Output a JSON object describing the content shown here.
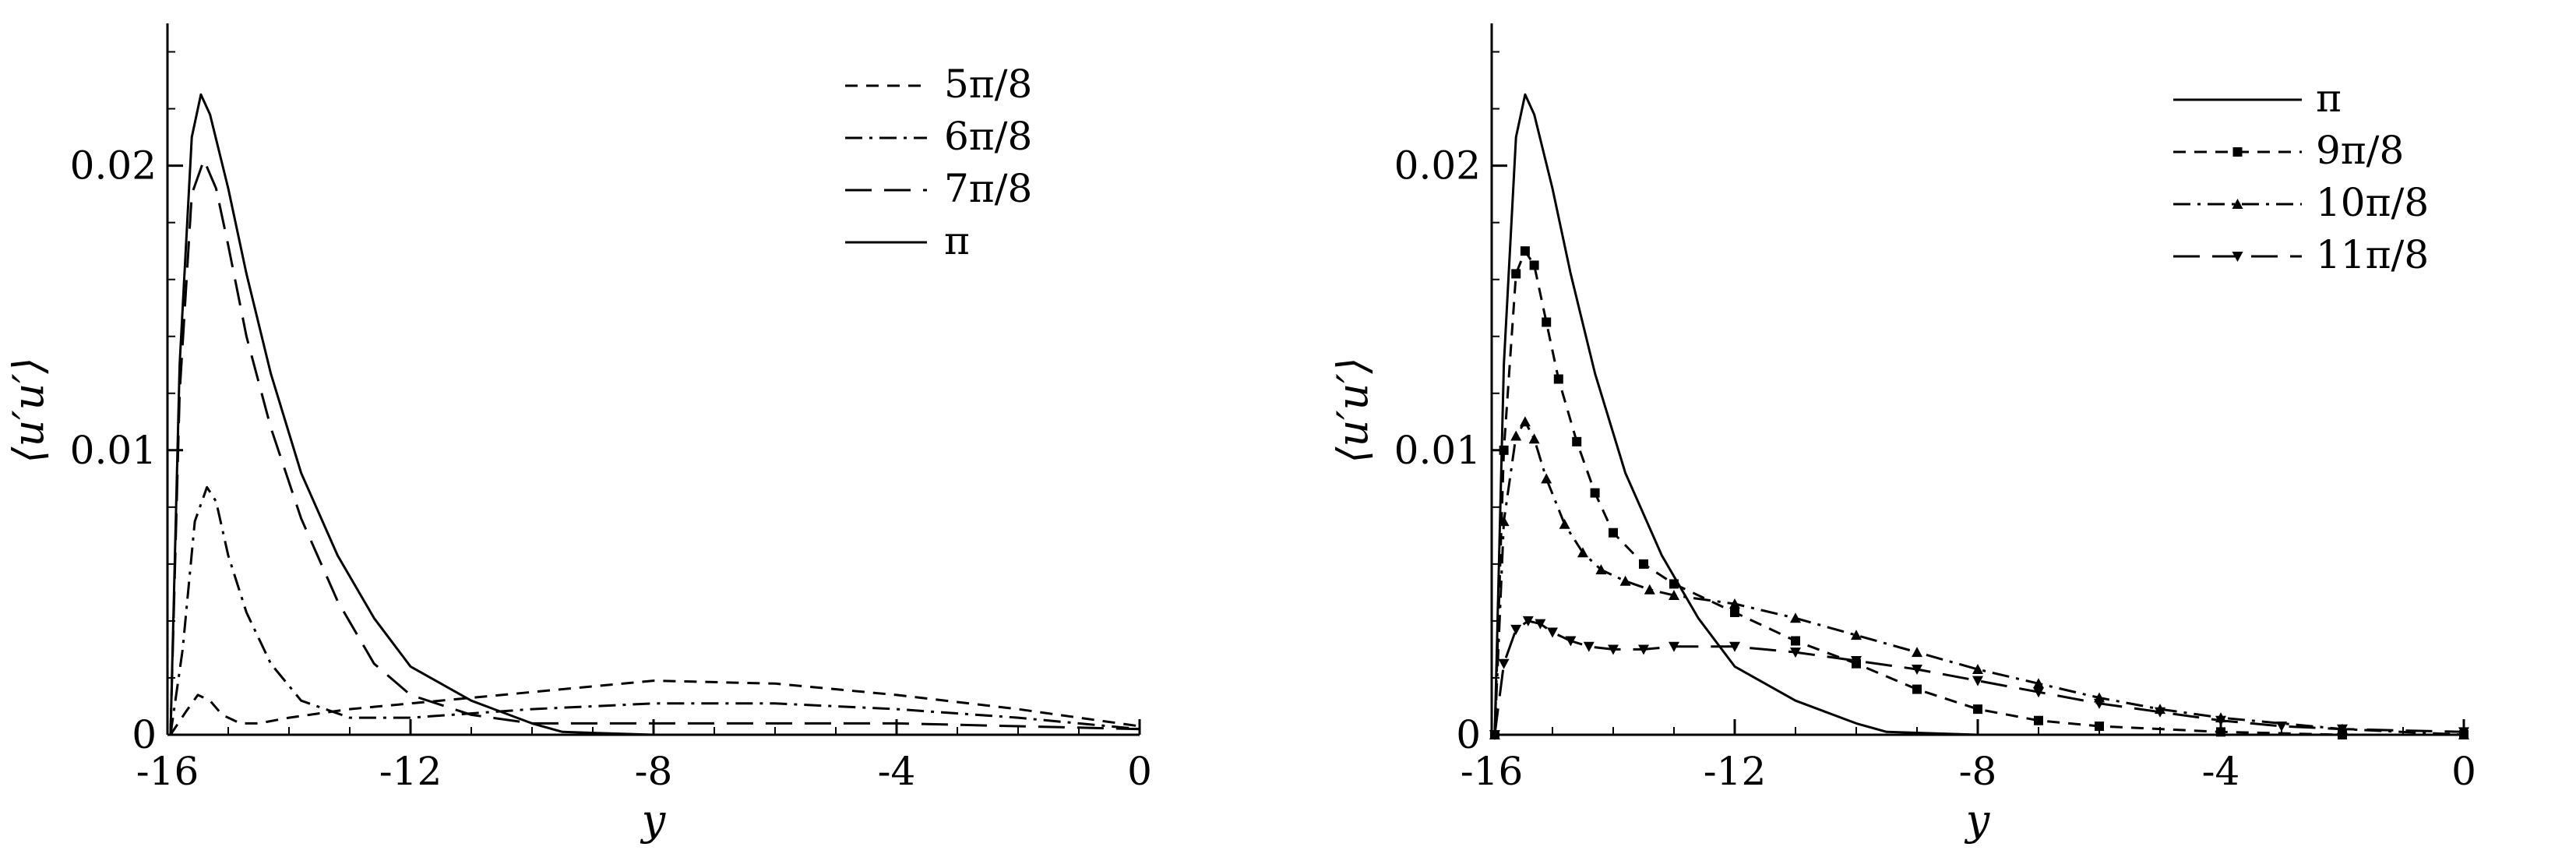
{
  "chart_data": [
    {
      "type": "line",
      "panel": "left",
      "xlabel": "y",
      "ylabel": "⟨u′u′⟩",
      "xlim": [
        -16,
        0
      ],
      "ylim": [
        0,
        0.025
      ],
      "xticks": [
        -16,
        -12,
        -8,
        -4,
        0
      ],
      "xtick_labels": [
        "-16",
        "-12",
        "-8",
        "-4",
        "0"
      ],
      "yticks": [
        0,
        0.01,
        0.02
      ],
      "ytick_labels": [
        "0",
        "0.01",
        "0.02"
      ],
      "grid": false,
      "legend_position": "top-right",
      "series": [
        {
          "name": "5π/8",
          "dash": "short-dash",
          "marker": "none",
          "x": [
            -15.95,
            -15.7,
            -15.5,
            -15.3,
            -15.1,
            -14.8,
            -14.5,
            -14,
            -13,
            -12,
            -10,
            -8,
            -6,
            -4,
            -2,
            0
          ],
          "y": [
            0,
            0.0008,
            0.0014,
            0.0012,
            0.0007,
            0.0004,
            0.0004,
            0.0006,
            0.0009,
            0.0011,
            0.0015,
            0.0019,
            0.0018,
            0.0014,
            0.0009,
            0.0003
          ]
        },
        {
          "name": "6π/8",
          "dash": "dash-dot",
          "marker": "none",
          "x": [
            -15.95,
            -15.75,
            -15.55,
            -15.35,
            -15.2,
            -15.0,
            -14.7,
            -14.3,
            -13.8,
            -13.0,
            -12.0,
            -10.0,
            -8.0,
            -6.0,
            -4.0,
            -2.0,
            0
          ],
          "y": [
            0,
            0.003,
            0.0075,
            0.0087,
            0.0082,
            0.0063,
            0.0043,
            0.0025,
            0.0012,
            0.0006,
            0.0006,
            0.0009,
            0.0011,
            0.0011,
            0.0009,
            0.0006,
            0.0002
          ]
        },
        {
          "name": "7π/8",
          "dash": "long-dash",
          "marker": "none",
          "x": [
            -15.95,
            -15.8,
            -15.6,
            -15.4,
            -15.2,
            -15.0,
            -14.7,
            -14.3,
            -13.8,
            -13.2,
            -12.6,
            -12.0,
            -11.0,
            -10.0,
            -8.0,
            -6.0,
            -4.0,
            -2.0,
            0
          ],
          "y": [
            0,
            0.012,
            0.019,
            0.0202,
            0.0192,
            0.0172,
            0.014,
            0.0108,
            0.0076,
            0.0047,
            0.0025,
            0.0014,
            0.0007,
            0.0004,
            0.0004,
            0.0004,
            0.0004,
            0.0003,
            0.0002
          ]
        },
        {
          "name": "π",
          "dash": "solid",
          "marker": "none",
          "x": [
            -15.95,
            -15.8,
            -15.6,
            -15.45,
            -15.3,
            -15.0,
            -14.7,
            -14.3,
            -13.8,
            -13.2,
            -12.6,
            -12.0,
            -11.0,
            -10.0,
            -9.5,
            -8.0,
            -6.0,
            -4.0,
            -2.0,
            0
          ],
          "y": [
            0,
            0.013,
            0.021,
            0.0225,
            0.0218,
            0.0192,
            0.0162,
            0.0127,
            0.0092,
            0.0063,
            0.0041,
            0.0024,
            0.0012,
            0.0004,
            0.0001,
            0,
            0,
            0,
            0,
            0
          ]
        }
      ]
    },
    {
      "type": "line",
      "panel": "right",
      "xlabel": "y",
      "ylabel": "⟨u′u′⟩",
      "xlim": [
        -16,
        0
      ],
      "ylim": [
        0,
        0.025
      ],
      "xticks": [
        -16,
        -12,
        -8,
        -4,
        0
      ],
      "xtick_labels": [
        "-16",
        "-12",
        "-8",
        "-4",
        "0"
      ],
      "yticks": [
        0,
        0.01,
        0.02
      ],
      "ytick_labels": [
        "0",
        "0.01",
        "0.02"
      ],
      "grid": false,
      "legend_position": "top-right",
      "series": [
        {
          "name": "π",
          "dash": "solid",
          "marker": "none",
          "x": [
            -15.95,
            -15.8,
            -15.6,
            -15.45,
            -15.3,
            -15.0,
            -14.7,
            -14.3,
            -13.8,
            -13.2,
            -12.6,
            -12.0,
            -11.0,
            -10.0,
            -9.5,
            -8.0,
            -6.0,
            -4.0,
            -2.0,
            0
          ],
          "y": [
            0,
            0.013,
            0.021,
            0.0225,
            0.0218,
            0.0192,
            0.0162,
            0.0127,
            0.0092,
            0.0063,
            0.0041,
            0.0024,
            0.0012,
            0.0004,
            0.0001,
            0,
            0,
            0,
            0,
            0
          ]
        },
        {
          "name": "9π/8",
          "dash": "short-dash",
          "marker": "square",
          "x": [
            -15.95,
            -15.8,
            -15.6,
            -15.45,
            -15.3,
            -15.1,
            -14.9,
            -14.6,
            -14.3,
            -14.0,
            -13.5,
            -13.0,
            -12.0,
            -11.0,
            -10.0,
            -9.0,
            -8.0,
            -7.0,
            -6.0,
            -4.0,
            -2.0,
            0
          ],
          "y": [
            0,
            0.01,
            0.0162,
            0.017,
            0.0165,
            0.0145,
            0.0125,
            0.0103,
            0.0085,
            0.0071,
            0.006,
            0.0053,
            0.0043,
            0.0033,
            0.0025,
            0.0016,
            0.0009,
            0.0005,
            0.0003,
            0.0001,
            0,
            0
          ]
        },
        {
          "name": "10π/8",
          "dash": "dash-dot",
          "marker": "triangle-up",
          "x": [
            -15.95,
            -15.8,
            -15.6,
            -15.45,
            -15.3,
            -15.1,
            -14.8,
            -14.5,
            -14.2,
            -13.8,
            -13.4,
            -13.0,
            -12.0,
            -11.0,
            -10.0,
            -9.0,
            -8.0,
            -7.0,
            -6.0,
            -5.0,
            -4.0,
            -2.0,
            0
          ],
          "y": [
            0,
            0.0075,
            0.0105,
            0.011,
            0.0104,
            0.009,
            0.0074,
            0.0064,
            0.0058,
            0.0054,
            0.0051,
            0.0049,
            0.0046,
            0.0041,
            0.0035,
            0.0029,
            0.0023,
            0.0018,
            0.0013,
            0.0009,
            0.0006,
            0.0002,
            0
          ]
        },
        {
          "name": "11π/8",
          "dash": "long-dash",
          "marker": "triangle-down",
          "x": [
            -15.95,
            -15.8,
            -15.6,
            -15.4,
            -15.2,
            -15.0,
            -14.7,
            -14.4,
            -14.0,
            -13.5,
            -13.0,
            -12.0,
            -11.0,
            -10.0,
            -9.0,
            -8.0,
            -7.0,
            -6.0,
            -5.0,
            -4.0,
            -3.0,
            -2.0,
            0
          ],
          "y": [
            0,
            0.0025,
            0.0037,
            0.004,
            0.0039,
            0.0036,
            0.0033,
            0.0031,
            0.003,
            0.003,
            0.0031,
            0.0031,
            0.0029,
            0.0026,
            0.0023,
            0.0019,
            0.0015,
            0.0011,
            0.0008,
            0.0005,
            0.0003,
            0.0002,
            0.0001
          ]
        }
      ]
    }
  ]
}
